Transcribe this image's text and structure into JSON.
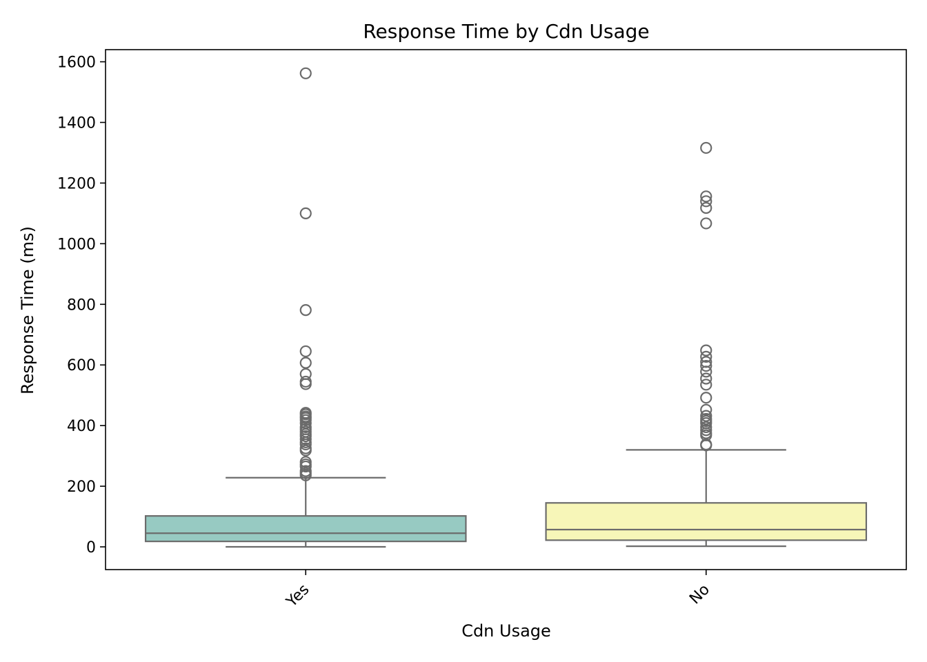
{
  "chart_data": {
    "type": "box",
    "title": "Response Time by Cdn Usage",
    "xlabel": "Cdn Usage",
    "ylabel": "Response Time (ms)",
    "ylim": [
      -75,
      1640
    ],
    "yticks": [
      0,
      200,
      400,
      600,
      800,
      1000,
      1200,
      1400,
      1600
    ],
    "grid": false,
    "categories": [
      "Yes",
      "No"
    ],
    "box_stroke_color": "#6b6b6b",
    "series": [
      {
        "category": "Yes",
        "color": "#97cac2",
        "whisker_low": 0,
        "q1": 18,
        "median": 45,
        "q3": 102,
        "whisker_high": 228,
        "outliers": [
          1562,
          1100,
          781,
          645,
          607,
          570,
          545,
          537,
          442,
          437,
          430,
          425,
          418,
          408,
          395,
          388,
          380,
          372,
          365,
          355,
          345,
          338,
          325,
          318,
          280,
          272,
          265,
          250,
          243,
          236
        ]
      },
      {
        "category": "No",
        "color": "#f7f6b8",
        "whisker_low": 2,
        "q1": 22,
        "median": 57,
        "q3": 145,
        "whisker_high": 320,
        "outliers": [
          1316,
          1156,
          1140,
          1118,
          1067,
          648,
          627,
          610,
          597,
          578,
          555,
          535,
          492,
          452,
          432,
          422,
          415,
          408,
          395,
          385,
          375,
          368,
          338,
          335
        ]
      }
    ]
  }
}
